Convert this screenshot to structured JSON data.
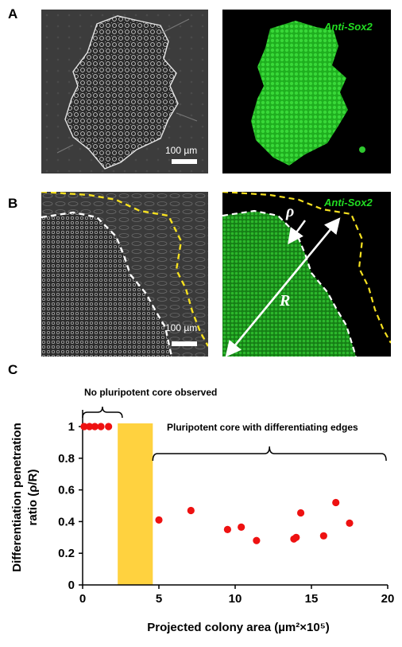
{
  "panels": {
    "a": {
      "letter": "A",
      "stain": "Anti-Sox2",
      "scale": "100 µm"
    },
    "b": {
      "letter": "B",
      "stain": "Anti-Sox2",
      "scale": "100 µm",
      "rho": "ρ",
      "r": "R"
    },
    "c": {
      "letter": "C"
    }
  },
  "colors": {
    "fluorescence": "#22cc22",
    "boundary_outer": "#f5e020",
    "boundary_inner": "#ffffff",
    "points": "#ee1111",
    "bar_fill": "#ffd23f"
  },
  "chart_data": {
    "type": "scatter",
    "xlabel": "Projected colony area (µm²×10⁵)",
    "ylabel": "Differentiation penetration ratio (ρ/R)",
    "xlim": [
      0,
      20
    ],
    "ylim": [
      0,
      1.1
    ],
    "x_ticks": [
      "0",
      "5",
      "10",
      "15",
      "20"
    ],
    "y_ticks": [
      "0",
      "0.2",
      "0.4",
      "0.6",
      "0.8",
      "1"
    ],
    "annotations": [
      "No pluripotent core observed",
      "Pluripotent core with differentiating edges"
    ],
    "highlight_band": {
      "x_from": 2.3,
      "x_to": 4.6,
      "y_top": 1.02
    },
    "points": [
      {
        "x": 0.1,
        "y": 1.0
      },
      {
        "x": 0.45,
        "y": 1.0
      },
      {
        "x": 0.8,
        "y": 1.0
      },
      {
        "x": 1.2,
        "y": 1.0
      },
      {
        "x": 1.7,
        "y": 1.0
      },
      {
        "x": 5.0,
        "y": 0.41
      },
      {
        "x": 7.1,
        "y": 0.47
      },
      {
        "x": 9.5,
        "y": 0.35
      },
      {
        "x": 10.4,
        "y": 0.365
      },
      {
        "x": 11.4,
        "y": 0.28
      },
      {
        "x": 13.85,
        "y": 0.29
      },
      {
        "x": 14.0,
        "y": 0.3
      },
      {
        "x": 14.3,
        "y": 0.455
      },
      {
        "x": 15.8,
        "y": 0.31
      },
      {
        "x": 16.6,
        "y": 0.52
      },
      {
        "x": 17.5,
        "y": 0.39
      }
    ]
  }
}
